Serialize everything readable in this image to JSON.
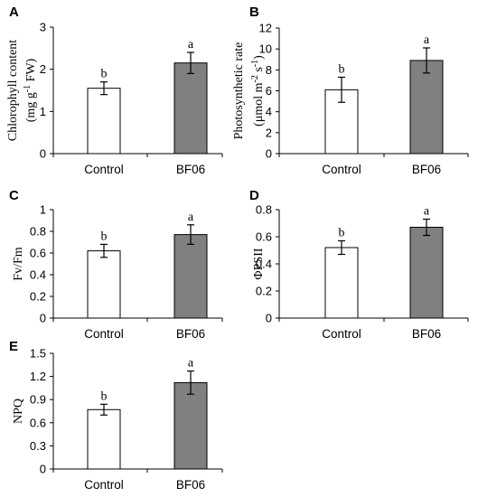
{
  "chart_data": [
    {
      "panel": "A",
      "type": "bar",
      "categories": [
        "Control",
        "BF06"
      ],
      "values": [
        1.55,
        2.15
      ],
      "errors": [
        0.15,
        0.25
      ],
      "significance": [
        "b",
        "a"
      ],
      "bar_colors": [
        "#ffffff",
        "#808080"
      ],
      "ylabel": [
        "Chlorophyll content",
        "(mg g",
        "-1",
        " FW)"
      ],
      "ylim": [
        0,
        3
      ],
      "yticks": [
        "0",
        "1",
        "2",
        "3"
      ]
    },
    {
      "panel": "B",
      "type": "bar",
      "categories": [
        "Control",
        "BF06"
      ],
      "values": [
        6.1,
        8.9
      ],
      "errors": [
        1.2,
        1.2
      ],
      "significance": [
        "b",
        "a"
      ],
      "bar_colors": [
        "#ffffff",
        "#808080"
      ],
      "ylabel": [
        "Photosynthetic rate",
        "(μmol m",
        "-2",
        " s",
        "-1",
        ")"
      ],
      "ylim": [
        0,
        12
      ],
      "yticks": [
        "0",
        "2",
        "4",
        "6",
        "8",
        "10",
        "12"
      ]
    },
    {
      "panel": "C",
      "type": "bar",
      "categories": [
        "Control",
        "BF06"
      ],
      "values": [
        0.62,
        0.77
      ],
      "errors": [
        0.06,
        0.09
      ],
      "significance": [
        "b",
        "a"
      ],
      "bar_colors": [
        "#ffffff",
        "#808080"
      ],
      "ylabel": [
        "Fv/Fm"
      ],
      "ylim": [
        0,
        1
      ],
      "yticks": [
        "0",
        "0.2",
        "0.4",
        "0.6",
        "0.8",
        "1"
      ]
    },
    {
      "panel": "D",
      "type": "bar",
      "categories": [
        "Control",
        "BF06"
      ],
      "values": [
        0.52,
        0.67
      ],
      "errors": [
        0.05,
        0.06
      ],
      "significance": [
        "b",
        "a"
      ],
      "bar_colors": [
        "#ffffff",
        "#808080"
      ],
      "ylabel": [
        "ΦPSII"
      ],
      "ylim": [
        0,
        0.8
      ],
      "yticks": [
        "0",
        "0.2",
        "0.4",
        "0.6",
        "0.8"
      ]
    },
    {
      "panel": "E",
      "type": "bar",
      "categories": [
        "Control",
        "BF06"
      ],
      "values": [
        0.77,
        1.12
      ],
      "errors": [
        0.07,
        0.15
      ],
      "significance": [
        "b",
        "a"
      ],
      "bar_colors": [
        "#ffffff",
        "#808080"
      ],
      "ylabel": [
        "NPQ"
      ],
      "ylim": [
        0,
        1.5
      ],
      "yticks": [
        "0",
        "0.3",
        "0.6",
        "0.9",
        "1.2",
        "1.5"
      ]
    }
  ]
}
